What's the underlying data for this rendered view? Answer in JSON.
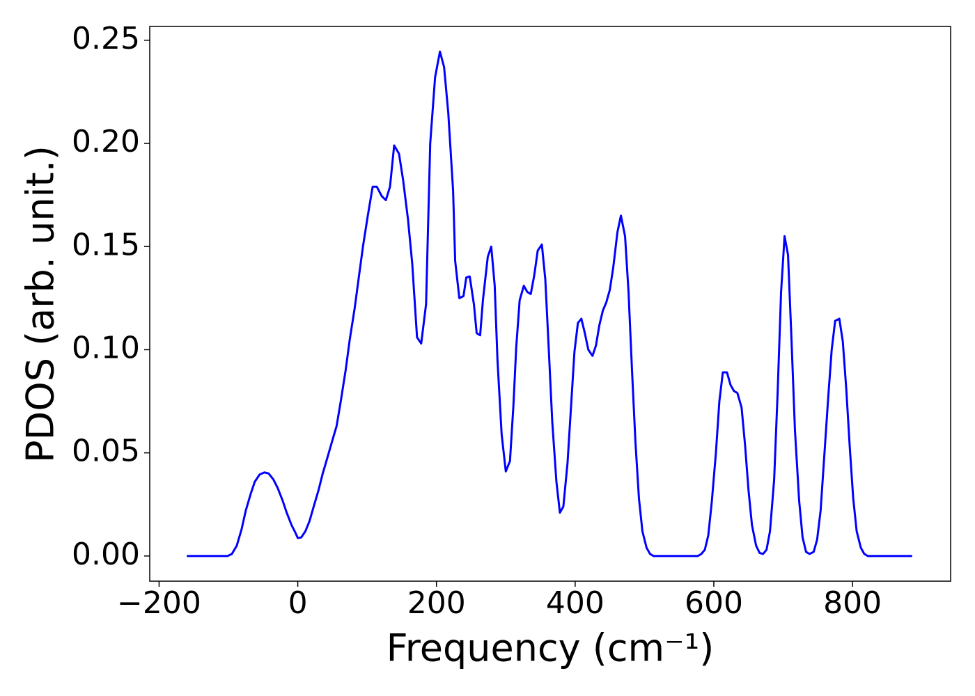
{
  "chart_data": {
    "type": "line",
    "xlabel": "Frequency (cm⁻¹)",
    "ylabel": "PDOS (arb. unit.)",
    "x": [
      -160,
      -140,
      -120,
      -101,
      -95,
      -88,
      -81,
      -75,
      -68,
      -62,
      -55,
      -48,
      -42,
      -35,
      -29,
      -22,
      -16,
      -9,
      -3,
      0,
      5,
      11,
      17,
      23,
      30,
      36,
      43,
      49,
      56,
      62,
      69,
      75,
      82,
      88,
      94,
      101,
      108,
      114,
      121,
      127,
      133,
      139,
      146,
      152,
      159,
      165,
      172,
      178,
      185,
      191,
      198,
      205,
      211,
      217,
      224,
      227,
      233,
      239,
      243,
      248,
      254,
      258,
      263,
      267,
      274,
      279,
      284,
      288,
      294,
      300,
      306,
      311,
      315,
      320,
      326,
      331,
      336,
      341,
      346,
      352,
      357,
      362,
      367,
      373,
      378,
      383,
      389,
      394,
      399,
      404,
      409,
      414,
      419,
      425,
      430,
      435,
      440,
      445,
      450,
      455,
      461,
      466,
      472,
      477,
      482,
      487,
      492,
      497,
      503,
      508,
      513,
      540,
      577,
      582,
      587,
      592,
      597,
      603,
      608,
      613,
      619,
      624,
      629,
      634,
      640,
      645,
      650,
      655,
      661,
      666,
      671,
      676,
      681,
      687,
      692,
      697,
      702,
      707,
      712,
      717,
      723,
      728,
      733,
      738,
      744,
      749,
      754,
      759,
      765,
      770,
      775,
      781,
      786,
      791,
      796,
      801,
      806,
      812,
      817,
      822,
      850,
      886
    ],
    "series": [
      {
        "name": "PDOS",
        "color": "#0000ff",
        "values": [
          0,
          0,
          0,
          0,
          0.001,
          0.005,
          0.013,
          0.022,
          0.03,
          0.036,
          0.0395,
          0.0405,
          0.04,
          0.037,
          0.033,
          0.027,
          0.021,
          0.015,
          0.011,
          0.0087,
          0.009,
          0.012,
          0.017,
          0.024,
          0.032,
          0.04,
          0.048,
          0.055,
          0.063,
          0.075,
          0.09,
          0.105,
          0.12,
          0.135,
          0.15,
          0.165,
          0.179,
          0.179,
          0.1745,
          0.1725,
          0.179,
          0.199,
          0.195,
          0.182,
          0.163,
          0.142,
          0.106,
          0.103,
          0.122,
          0.2,
          0.232,
          0.2445,
          0.237,
          0.215,
          0.177,
          0.143,
          0.125,
          0.126,
          0.135,
          0.1355,
          0.122,
          0.108,
          0.107,
          0.124,
          0.145,
          0.15,
          0.131,
          0.095,
          0.059,
          0.041,
          0.046,
          0.073,
          0.101,
          0.124,
          0.131,
          0.128,
          0.127,
          0.136,
          0.148,
          0.151,
          0.134,
          0.1,
          0.065,
          0.036,
          0.021,
          0.024,
          0.045,
          0.072,
          0.099,
          0.113,
          0.115,
          0.108,
          0.1,
          0.097,
          0.102,
          0.112,
          0.119,
          0.123,
          0.129,
          0.14,
          0.157,
          0.165,
          0.155,
          0.128,
          0.09,
          0.055,
          0.028,
          0.012,
          0.004,
          0.001,
          0,
          0,
          0,
          0.001,
          0.003,
          0.01,
          0.026,
          0.05,
          0.075,
          0.089,
          0.089,
          0.083,
          0.08,
          0.079,
          0.072,
          0.054,
          0.032,
          0.015,
          0.005,
          0.0015,
          0.001,
          0.003,
          0.012,
          0.037,
          0.079,
          0.128,
          0.155,
          0.146,
          0.105,
          0.061,
          0.027,
          0.009,
          0.002,
          0.001,
          0.002,
          0.008,
          0.022,
          0.047,
          0.077,
          0.1,
          0.114,
          0.115,
          0.104,
          0.081,
          0.053,
          0.028,
          0.012,
          0.004,
          0.001,
          0,
          0,
          0
        ]
      }
    ],
    "xlim": [
      -213.5,
      941.5
    ],
    "xticks": [
      {
        "value": -200,
        "label": "−200"
      },
      0,
      200,
      400,
      600,
      800
    ],
    "ylim": [
      -0.0122,
      0.2567
    ],
    "yticks": [
      {
        "value": 0,
        "label": "0.00"
      },
      {
        "value": 0.05,
        "label": "0.05"
      },
      {
        "value": 0.1,
        "label": "0.10"
      },
      {
        "value": 0.15,
        "label": "0.15"
      },
      {
        "value": 0.2,
        "label": "0.20"
      },
      {
        "value": 0.25,
        "label": "0.25"
      }
    ],
    "grid": false
  }
}
